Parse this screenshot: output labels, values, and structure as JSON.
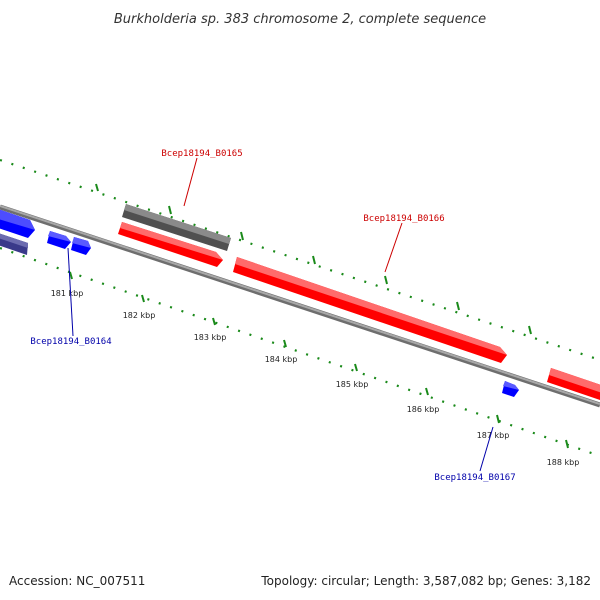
{
  "title": "Burkholderia sp. 383 chromosome 2, complete sequence",
  "footer": {
    "accession": "Accession: NC_007511",
    "summary": "Topology: circular; Length: 3,587,082 bp; Genes: 3,182"
  },
  "ticks": [
    "181 kbp",
    "182 kbp",
    "183 kbp",
    "184 kbp",
    "185 kbp",
    "186 kbp",
    "187 kbp",
    "188 kbp"
  ],
  "genes": {
    "b0164": "Bcep18194_B0164",
    "b0165": "Bcep18194_B0165",
    "b0166": "Bcep18194_B0166",
    "b0167": "Bcep18194_B0167"
  },
  "colors": {
    "forward": "#ff0000",
    "reverse": "#0000ff",
    "other": "#555555",
    "axis": "#888888",
    "tick": "#1a8a1a",
    "red_label": "#cc0000",
    "blue_label": "#0000aa"
  }
}
